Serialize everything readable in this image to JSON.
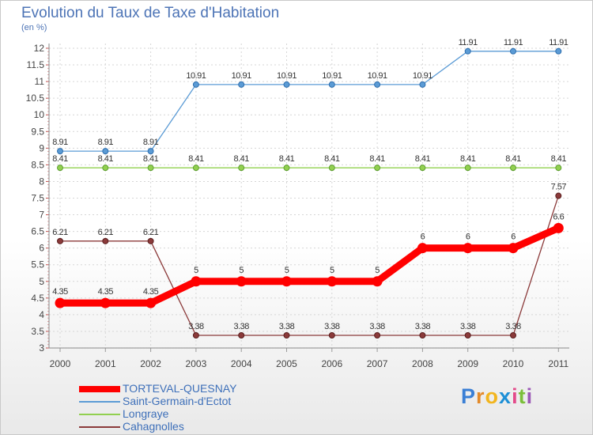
{
  "chart_data": {
    "type": "line",
    "title": "Evolution du Taux de Taxe d'Habitation",
    "ylabel": "(en %)",
    "xlabel": "",
    "x": [
      "2000",
      "2001",
      "2002",
      "2003",
      "2004",
      "2005",
      "2006",
      "2007",
      "2008",
      "2009",
      "2010",
      "2011"
    ],
    "ylim": [
      3,
      12
    ],
    "yticks": [
      "3",
      "3.5",
      "4",
      "4.5",
      "5",
      "5.5",
      "6",
      "6.5",
      "7",
      "7.5",
      "8",
      "8.5",
      "9",
      "9.5",
      "10",
      "10.5",
      "11",
      "11.5",
      "12"
    ],
    "grid": true,
    "legend_position": "bottom-left",
    "series": [
      {
        "name": "TORTEVAL-QUESNAY",
        "color": "#ff0000",
        "values": [
          4.35,
          4.35,
          4.35,
          5,
          5,
          5,
          5,
          5,
          6,
          6,
          6,
          6.6
        ],
        "labels": [
          "4.35",
          "4.35",
          "4.35",
          "5",
          "5",
          "5",
          "5",
          "5",
          "6",
          "6",
          "6",
          "6.6"
        ]
      },
      {
        "name": "Saint-Germain-d'Ectot",
        "color": "#5b9bd5",
        "values": [
          8.91,
          8.91,
          8.91,
          10.91,
          10.91,
          10.91,
          10.91,
          10.91,
          10.91,
          11.91,
          11.91,
          11.91
        ],
        "labels": [
          "8.91",
          "8.91",
          "8.91",
          "10.91",
          "10.91",
          "10.91",
          "10.91",
          "10.91",
          "10.91",
          "11.91",
          "11.91",
          "11.91"
        ]
      },
      {
        "name": "Longraye",
        "color": "#92d050",
        "values": [
          8.41,
          8.41,
          8.41,
          8.41,
          8.41,
          8.41,
          8.41,
          8.41,
          8.41,
          8.41,
          8.41,
          8.41
        ],
        "labels": [
          "8.41",
          "8.41",
          "8.41",
          "8.41",
          "8.41",
          "8.41",
          "8.41",
          "8.41",
          "8.41",
          "8.41",
          "8.41",
          "8.41"
        ]
      },
      {
        "name": "Cahagnolles",
        "color": "#8b3a3a",
        "values": [
          6.21,
          6.21,
          6.21,
          3.38,
          3.38,
          3.38,
          3.38,
          3.38,
          3.38,
          3.38,
          3.38,
          7.57
        ],
        "labels": [
          "6.21",
          "6.21",
          "6.21",
          "3.38",
          "3.38",
          "3.38",
          "3.38",
          "3.38",
          "3.38",
          "3.38",
          "3.38",
          "7.57"
        ]
      }
    ]
  },
  "logo": {
    "letters": [
      "P",
      "r",
      "o",
      "x",
      "i",
      "t",
      "i"
    ],
    "colors": [
      "#3a7fd5",
      "#e38a2a",
      "#f2b51e",
      "#1d8fd6",
      "#e34a8a",
      "#7bbf3a",
      "#9b59b6"
    ]
  }
}
